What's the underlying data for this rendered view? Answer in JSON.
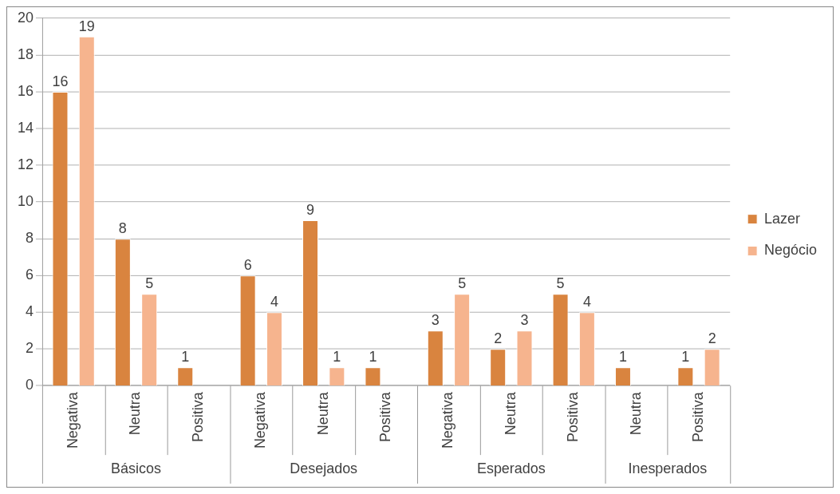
{
  "chart_data": {
    "type": "bar",
    "categories": [
      "Negativa",
      "Neutra",
      "Positiva",
      "Negativa",
      "Neutra",
      "Positiva",
      "Negativa",
      "Neutra",
      "Positiva",
      "Neutra",
      "Positiva"
    ],
    "series": [
      {
        "name": "Lazer",
        "color": "#d9843f",
        "values": [
          16,
          8,
          1,
          6,
          9,
          1,
          3,
          2,
          5,
          1,
          1
        ]
      },
      {
        "name": "Negócio",
        "color": "#f6b48e",
        "values": [
          19,
          5,
          null,
          4,
          1,
          null,
          5,
          3,
          4,
          null,
          2
        ]
      }
    ],
    "annotations": [
      "Básicos",
      "Desejados",
      "Esperados",
      "Inesperados"
    ],
    "ylim": [
      0,
      20
    ],
    "yticks": [
      0,
      2,
      4,
      6,
      8,
      10,
      12,
      14,
      16,
      18,
      20
    ],
    "grid": "y",
    "legend": "right",
    "data_labels": true
  }
}
